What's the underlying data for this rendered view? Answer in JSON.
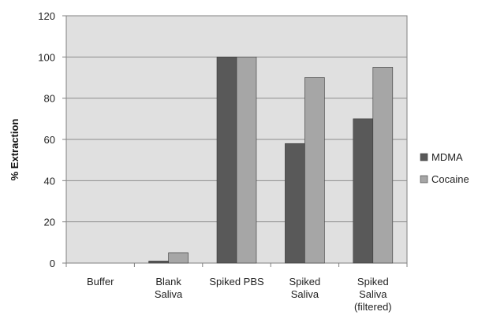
{
  "chart_data": {
    "type": "bar",
    "categories": [
      "Buffer",
      "Blank\nSaliva",
      "Spiked PBS",
      "Spiked\nSaliva",
      "Spiked\nSaliva\n(filtered)"
    ],
    "series": [
      {
        "name": "MDMA",
        "values": [
          0,
          1,
          100,
          58,
          70
        ],
        "color": "#595959"
      },
      {
        "name": "Cocaine",
        "values": [
          0,
          5,
          100,
          90,
          95
        ],
        "color": "#a6a6a6"
      }
    ],
    "ylabel": "% Extraction",
    "ylim": [
      0,
      120
    ],
    "yticks": [
      0,
      20,
      40,
      60,
      80,
      100,
      120
    ],
    "grid": true,
    "plot_background": "#e0e0e0",
    "legend_position": "right"
  }
}
